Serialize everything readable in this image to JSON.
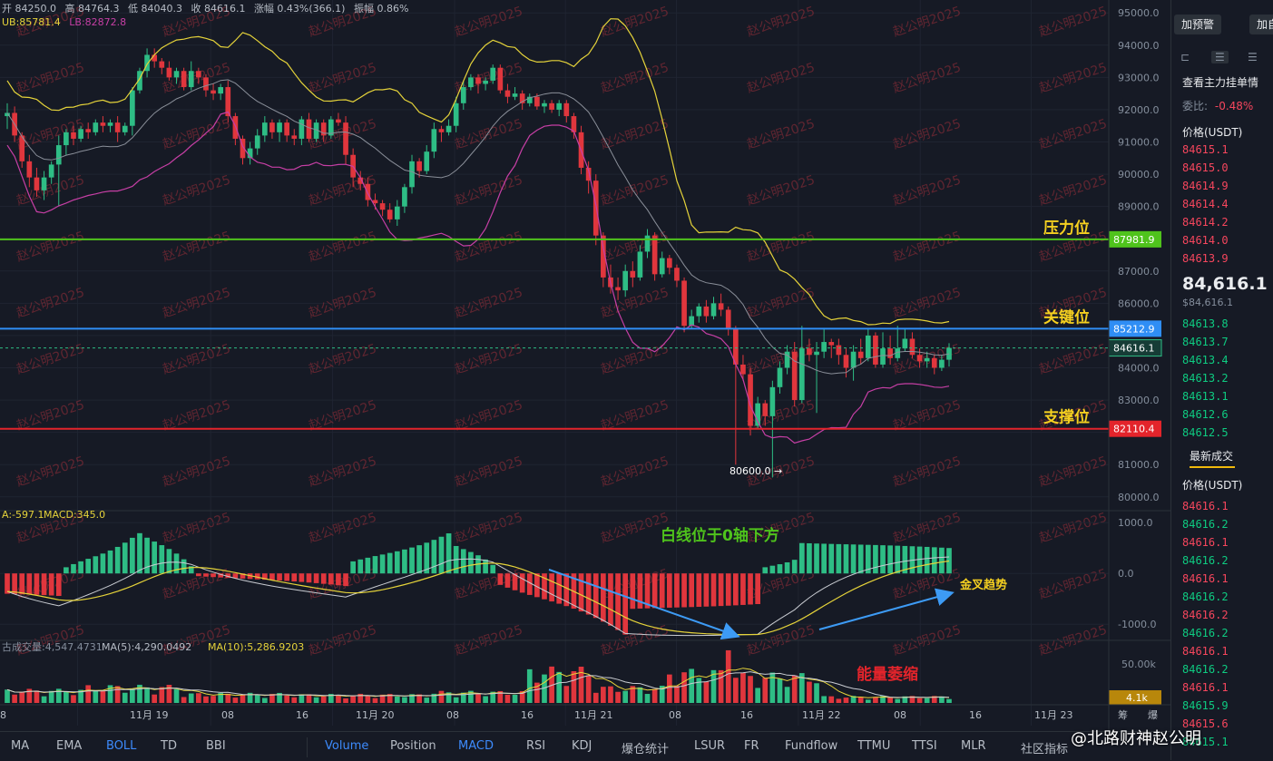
{
  "header": {
    "open": "开 84250.0",
    "high": "高 84764.3",
    "low": "低 84040.3",
    "close": "收 84616.1",
    "change": "涨幅 0.43%(366.1)",
    "amplitude": "振幅 0.86%",
    "boll_ub": "UB:85781.4",
    "boll_lb": "LB:82872.8"
  },
  "colors": {
    "bg": "#161a25",
    "up": "#2ebd85",
    "down": "#e0363d",
    "boll_ub": "#e5d33a",
    "boll_mid": "#8a8f99",
    "boll_lb": "#c63fa5",
    "pressure": "#4fc31c",
    "key": "#2f8ef5",
    "support": "#e3242b",
    "annotation_yellow": "#f5d020",
    "watermark": "#9c2f3b"
  },
  "annotations": {
    "pressure": "压力位",
    "key": "关键位",
    "support": "支撑位",
    "low_mark": "80600.0 →",
    "macd_note": "白线位于0轴下方",
    "golden_cross": "金叉趋势",
    "volume_note": "能量萎缩",
    "watermark": "赵公明2025"
  },
  "price_axis": {
    "ticks": [
      "95000.0",
      "94000.0",
      "93000.0",
      "92000.0",
      "91000.0",
      "90000.0",
      "89000.0",
      "87000.0",
      "86000.0",
      "84000.0",
      "83000.0",
      "81000.0",
      "80000.0"
    ],
    "pressure_tag": "87981.9",
    "key_tag": "85212.9",
    "current_tag": "84616.1",
    "support_tag": "82110.4"
  },
  "macd_panel": {
    "label_dea": "A:-597.1",
    "label_macd": "MACD:345.0",
    "ticks": [
      "1000.0",
      "0.0",
      "-1000.0"
    ]
  },
  "volume_panel": {
    "label_vol": "古成交量:4,547.4731",
    "label_ma5": "MA(5):4,290.0492",
    "label_ma10": "MA(10):5,286.9203",
    "tick_top": "50.00k",
    "tag": "4.1k"
  },
  "time_axis": {
    "labels": [
      "8",
      "11月 19",
      "08",
      "16",
      "11月 20",
      "08",
      "16",
      "11月 21",
      "08",
      "16",
      "11月 22",
      "08",
      "16",
      "11月 23",
      "筹",
      "爆"
    ]
  },
  "chart_data": [
    {
      "type": "candlestick",
      "title": "",
      "ylim": [
        79600,
        95400
      ],
      "reference_lines": [
        {
          "name": "压力位",
          "value": 87981.9
        },
        {
          "name": "关键位",
          "value": 85212.9
        },
        {
          "name": "支撑位",
          "value": 82110.4
        },
        {
          "name": "",
          "value": 84616.1
        }
      ],
      "candles": [
        [
          91800,
          91900,
          92200,
          91400
        ],
        [
          91900,
          91200,
          92100,
          91000
        ],
        [
          91200,
          90400,
          91300,
          90200
        ],
        [
          90400,
          89900,
          90600,
          89600
        ],
        [
          89900,
          89500,
          90200,
          89300
        ],
        [
          89500,
          89900,
          90100,
          89200
        ],
        [
          89900,
          90300,
          90400,
          89700
        ],
        [
          90300,
          90900,
          91200,
          89000
        ],
        [
          90900,
          91300,
          91400,
          90600
        ],
        [
          91300,
          91100,
          91500,
          90900
        ],
        [
          91100,
          91400,
          91500,
          91000
        ],
        [
          91400,
          91300,
          91600,
          91100
        ],
        [
          91300,
          91600,
          91700,
          91200
        ],
        [
          91600,
          91500,
          91800,
          91300
        ],
        [
          91500,
          91600,
          91700,
          91300
        ],
        [
          91600,
          91300,
          91800,
          91000
        ],
        [
          91300,
          91500,
          91600,
          91200
        ],
        [
          91500,
          92600,
          92700,
          91200
        ],
        [
          92600,
          93200,
          93300,
          92500
        ],
        [
          93200,
          93700,
          93900,
          93000
        ],
        [
          93700,
          93500,
          93900,
          93300
        ],
        [
          93500,
          93300,
          93600,
          93100
        ],
        [
          93300,
          93000,
          93500,
          92900
        ],
        [
          93000,
          93200,
          93300,
          92800
        ],
        [
          93200,
          92700,
          93300,
          92600
        ],
        [
          92700,
          93200,
          93500,
          92600
        ],
        [
          93200,
          93000,
          93300,
          92800
        ],
        [
          93000,
          92600,
          93100,
          92400
        ],
        [
          92600,
          92500,
          92800,
          92300
        ],
        [
          92500,
          92700,
          92800,
          92300
        ],
        [
          92700,
          91800,
          92900,
          91600
        ],
        [
          91800,
          91100,
          91900,
          90900
        ],
        [
          91100,
          90500,
          91200,
          90300
        ],
        [
          90500,
          90800,
          91000,
          90300
        ],
        [
          90800,
          91200,
          91400,
          90600
        ],
        [
          91200,
          91600,
          91800,
          91000
        ],
        [
          91600,
          91300,
          91700,
          91100
        ],
        [
          91300,
          91600,
          91700,
          91000
        ],
        [
          91600,
          91200,
          91700,
          91000
        ],
        [
          91200,
          91100,
          91400,
          90900
        ],
        [
          91100,
          91700,
          91800,
          90900
        ],
        [
          91700,
          91100,
          91900,
          91000
        ],
        [
          91100,
          91600,
          91700,
          91000
        ],
        [
          91600,
          91200,
          91700,
          91000
        ],
        [
          91200,
          91700,
          91800,
          91100
        ],
        [
          91700,
          91600,
          91900,
          91500
        ],
        [
          91600,
          90600,
          91800,
          90300
        ],
        [
          90600,
          89900,
          90800,
          89600
        ],
        [
          89900,
          89700,
          90100,
          89500
        ],
        [
          89700,
          89200,
          89900,
          89000
        ],
        [
          89200,
          89100,
          89400,
          88900
        ],
        [
          89100,
          88900,
          89200,
          88700
        ],
        [
          88900,
          88600,
          89100,
          88500
        ],
        [
          88600,
          89000,
          89200,
          88400
        ],
        [
          89000,
          89600,
          89700,
          88800
        ],
        [
          89600,
          90400,
          90600,
          89400
        ],
        [
          90400,
          90100,
          90500,
          89900
        ],
        [
          90100,
          90700,
          90900,
          90000
        ],
        [
          90700,
          91400,
          91600,
          90500
        ],
        [
          91400,
          91300,
          91500,
          91000
        ],
        [
          91300,
          91500,
          91700,
          91200
        ],
        [
          91500,
          92200,
          92400,
          91300
        ],
        [
          92200,
          92700,
          92900,
          92000
        ],
        [
          92700,
          93000,
          93100,
          92600
        ],
        [
          93000,
          92800,
          93100,
          92500
        ],
        [
          92800,
          92900,
          93000,
          92600
        ],
        [
          92900,
          93300,
          93400,
          92800
        ],
        [
          93300,
          92600,
          93400,
          92500
        ],
        [
          92600,
          92400,
          92800,
          92200
        ],
        [
          92400,
          92500,
          92700,
          92300
        ],
        [
          92500,
          92200,
          92600,
          92000
        ],
        [
          92200,
          92400,
          92500,
          92100
        ],
        [
          92400,
          92100,
          92500,
          92000
        ],
        [
          92100,
          92200,
          92300,
          91900
        ],
        [
          92200,
          92000,
          92300,
          91900
        ],
        [
          92000,
          92200,
          92300,
          91800
        ],
        [
          92200,
          91800,
          92300,
          91600
        ],
        [
          91800,
          91300,
          91900,
          91100
        ],
        [
          91300,
          90200,
          91500,
          90000
        ],
        [
          90200,
          89800,
          90400,
          89400
        ],
        [
          89800,
          88100,
          90000,
          87800
        ],
        [
          88100,
          86800,
          88200,
          86500
        ],
        [
          86800,
          86500,
          87200,
          86300
        ],
        [
          86500,
          86400,
          86800,
          86100
        ],
        [
          86400,
          87000,
          87200,
          86200
        ],
        [
          87000,
          86800,
          87300,
          86500
        ],
        [
          86800,
          87600,
          87800,
          86700
        ],
        [
          87600,
          88100,
          88300,
          87400
        ],
        [
          88100,
          86900,
          88200,
          86700
        ],
        [
          86900,
          87400,
          87600,
          86800
        ],
        [
          87400,
          87100,
          87500,
          86900
        ],
        [
          87100,
          86700,
          87200,
          86500
        ],
        [
          86700,
          85300,
          86800,
          85100
        ],
        [
          85300,
          85600,
          85800,
          85200
        ],
        [
          85600,
          85900,
          86000,
          85400
        ],
        [
          85900,
          85600,
          86100,
          85400
        ],
        [
          85600,
          86000,
          86200,
          85500
        ],
        [
          86000,
          85800,
          86300,
          85600
        ],
        [
          85800,
          85200,
          85900,
          85000
        ],
        [
          85200,
          84100,
          85300,
          81000
        ],
        [
          84100,
          83800,
          84400,
          83600
        ],
        [
          83800,
          82200,
          84000,
          81900
        ],
        [
          82200,
          82900,
          83100,
          82100
        ],
        [
          82900,
          82500,
          83000,
          82200
        ],
        [
          82500,
          83400,
          83600,
          80600
        ],
        [
          83400,
          84000,
          84200,
          83200
        ],
        [
          84000,
          84500,
          84700,
          83800
        ],
        [
          84500,
          83000,
          84800,
          82800
        ],
        [
          83000,
          84600,
          85300,
          82900
        ],
        [
          84600,
          84400,
          84900,
          84200
        ],
        [
          84400,
          84500,
          84800,
          82600
        ],
        [
          84500,
          84800,
          85200,
          84300
        ],
        [
          84800,
          84700,
          84900,
          84300
        ],
        [
          84700,
          84400,
          84900,
          84100
        ],
        [
          84400,
          84000,
          84600,
          83700
        ],
        [
          84000,
          84500,
          84700,
          83600
        ],
        [
          84500,
          84300,
          84900,
          84100
        ],
        [
          84300,
          85000,
          85200,
          84200
        ],
        [
          85000,
          84100,
          85100,
          84000
        ],
        [
          84100,
          84600,
          85100,
          84000
        ],
        [
          84600,
          84300,
          85000,
          84100
        ],
        [
          84300,
          84600,
          85300,
          84200
        ],
        [
          84600,
          84900,
          85200,
          84500
        ],
        [
          84900,
          84400,
          85100,
          84300
        ],
        [
          84400,
          84200,
          84600,
          84000
        ],
        [
          84200,
          84300,
          84500,
          84000
        ],
        [
          84300,
          84000,
          84400,
          83800
        ],
        [
          84000,
          84250,
          84400,
          83900
        ],
        [
          84250,
          84616,
          84764,
          84040
        ]
      ]
    },
    {
      "type": "bar",
      "title": "MACD",
      "ylim": [
        -1300,
        1200
      ],
      "histogram_profile": [
        {
          "from": 0,
          "to": 0.06,
          "v0": -400,
          "v1": -450
        },
        {
          "from": 0.06,
          "to": 0.14,
          "v0": 100,
          "v1": 800
        },
        {
          "from": 0.14,
          "to": 0.2,
          "v0": 800,
          "v1": 50
        },
        {
          "from": 0.2,
          "to": 0.36,
          "v0": -50,
          "v1": -250
        },
        {
          "from": 0.36,
          "to": 0.47,
          "v0": 200,
          "v1": 800
        },
        {
          "from": 0.47,
          "to": 0.52,
          "v0": 600,
          "v1": 100
        },
        {
          "from": 0.52,
          "to": 0.66,
          "v0": -200,
          "v1": -1250
        },
        {
          "from": 0.66,
          "to": 0.8,
          "v0": -700,
          "v1": -600
        },
        {
          "from": 0.8,
          "to": 0.84,
          "v0": 100,
          "v1": 300
        },
        {
          "from": 0.84,
          "to": 1.0,
          "v0": 600,
          "v1": 500
        }
      ]
    },
    {
      "type": "bar",
      "title": "Volume",
      "ylim": [
        0,
        60000
      ],
      "volume_profile": [
        {
          "from": 0,
          "to": 0.08,
          "v": 14000
        },
        {
          "from": 0.08,
          "to": 0.18,
          "v": 18000
        },
        {
          "from": 0.18,
          "to": 0.3,
          "v": 10000
        },
        {
          "from": 0.3,
          "to": 0.45,
          "v": 9000
        },
        {
          "from": 0.45,
          "to": 0.55,
          "v": 12000
        },
        {
          "from": 0.55,
          "to": 0.62,
          "v": 36000
        },
        {
          "from": 0.62,
          "to": 0.7,
          "v": 17000
        },
        {
          "from": 0.7,
          "to": 0.78,
          "v": 34000
        },
        {
          "from": 0.78,
          "to": 0.86,
          "v": 30000
        },
        {
          "from": 0.86,
          "to": 1.0,
          "v": 7000
        }
      ]
    }
  ],
  "order_book": {
    "btn_alert": "加预警",
    "btn_add": "加自",
    "main_orders": "查看主力挂单情",
    "ratio_label": "委比:",
    "ratio_value": "-0.48%",
    "price_header": "价格(USDT)",
    "asks": [
      "84615.1",
      "84615.0",
      "84614.9",
      "84614.4",
      "84614.2",
      "84614.0",
      "84613.9"
    ],
    "last_price": "84,616.1",
    "last_price_usd": "$84,616.1",
    "bids": [
      "84613.8",
      "84613.7",
      "84613.4",
      "84613.2",
      "84613.1",
      "84612.6",
      "84612.5"
    ],
    "trades_title": "最新成交",
    "trades_header": "价格(USDT)",
    "trades": [
      "84616.1",
      "84616.2",
      "84616.1",
      "84616.2",
      "84616.1",
      "84616.2",
      "84616.2",
      "84616.2",
      "84616.1",
      "84616.2",
      "84616.1",
      "84615.9",
      "84615.6",
      "84615.1"
    ]
  },
  "bottom_tabs": {
    "left": [
      "MA",
      "EMA",
      "BOLL",
      "TD",
      "BBI"
    ],
    "right": [
      "Volume",
      "Position",
      "MACD",
      "RSI",
      "KDJ",
      "爆仓统计",
      "LSUR",
      "FR",
      "Fundflow",
      "TTMU",
      "TTSI",
      "MLR",
      "社区指标"
    ],
    "active": [
      "BOLL",
      "Volume",
      "MACD"
    ]
  },
  "author": "@北路财神赵公明"
}
